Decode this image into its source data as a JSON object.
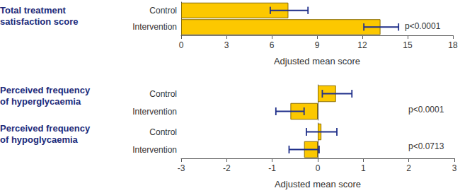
{
  "chart_data": [
    {
      "type": "bar",
      "orientation": "horizontal",
      "color": "#fcc800",
      "xlabel": "Adjusted mean score",
      "xlim": [
        0,
        18
      ],
      "xticks": [
        0,
        3,
        6,
        9,
        12,
        15,
        18
      ],
      "groups": [
        {
          "name": "Total treatment satisfaction score",
          "categories": [
            "Control",
            "Intervention"
          ],
          "values": [
            7.1,
            13.2
          ],
          "error_low": [
            5.9,
            12.1
          ],
          "error_high": [
            8.4,
            14.4
          ],
          "annotation": "p<0.0001"
        }
      ]
    },
    {
      "type": "bar",
      "orientation": "horizontal",
      "color": "#fcc800",
      "xlabel": "Adjusted mean score",
      "xlim": [
        -3,
        3
      ],
      "xticks": [
        -3,
        -2,
        -1,
        0,
        1,
        2,
        3
      ],
      "groups": [
        {
          "name": "Perceived frequency of hyperglycaemia",
          "categories": [
            "Control",
            "Intervention"
          ],
          "values": [
            0.4,
            -0.6
          ],
          "error_low": [
            0.1,
            -0.92
          ],
          "error_high": [
            0.75,
            -0.3
          ],
          "annotation": "p<0.0001"
        },
        {
          "name": "Perceived frequency of hypoglycaemia",
          "categories": [
            "Control",
            "Intervention"
          ],
          "values": [
            0.08,
            -0.3
          ],
          "error_low": [
            -0.25,
            -0.63
          ],
          "error_high": [
            0.42,
            0.03
          ],
          "annotation": "p<0.0713"
        }
      ]
    }
  ]
}
